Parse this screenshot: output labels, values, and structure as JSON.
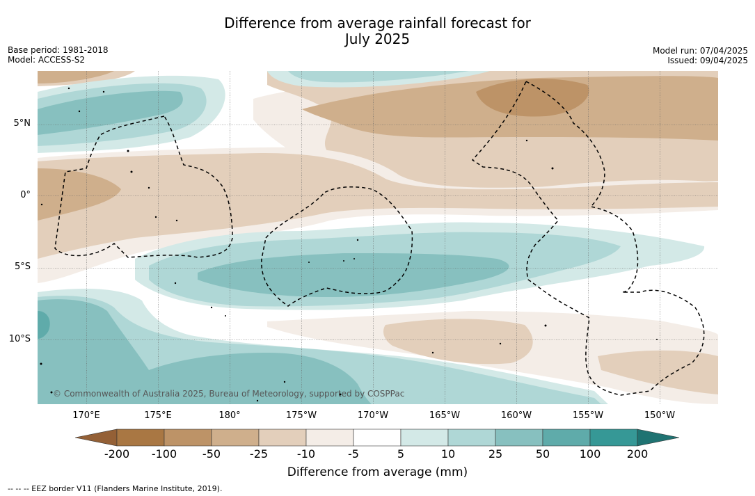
{
  "title_line1": "Difference from average rainfall forecast for",
  "title_line2": "July 2025",
  "base_period": "Base period: 1981-2018",
  "model": "Model: ACCESS-S2",
  "model_run": "Model run: 07/04/2025",
  "issued": "Issued: 09/04/2025",
  "copyright": "© Commonwealth of Australia 2025, Bureau of Meteorology, supported by COSPPac",
  "lat_labels": [
    "5°N",
    "0°",
    "5°S",
    "10°S"
  ],
  "lon_labels": [
    "170°E",
    "175°E",
    "180°",
    "175°W",
    "170°W",
    "165°W",
    "160°W",
    "155°W",
    "150°W"
  ],
  "colorbar": {
    "title": "Difference from average (mm)",
    "tick_labels": [
      "-200",
      "-100",
      "-50",
      "-25",
      "-10",
      "-5",
      "5",
      "10",
      "25",
      "50",
      "100",
      "200"
    ],
    "colors": [
      "#a97743",
      "#bd9367",
      "#cfaf8c",
      "#e3cfbb",
      "#f4ede7",
      "#ffffff",
      "#d3e9e7",
      "#afd7d6",
      "#87c0bf",
      "#5fabaa",
      "#369896"
    ],
    "under_color": "#946036",
    "over_color": "#1f7372"
  },
  "footnote": "--  --  -- EEZ border V11 (Flanders Marine Institute, 2019)."
}
